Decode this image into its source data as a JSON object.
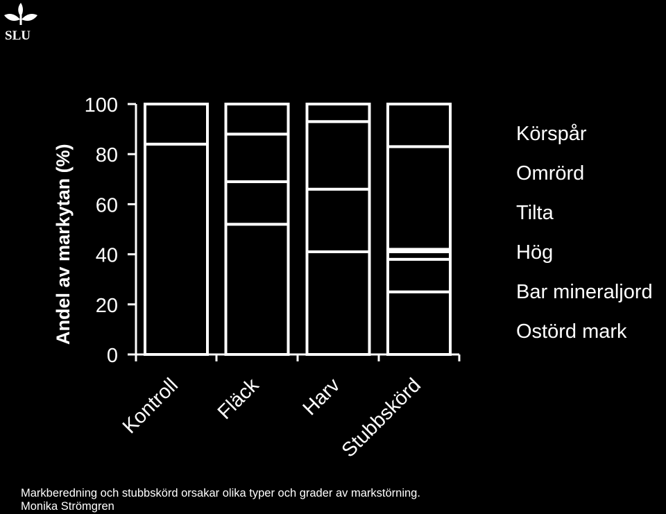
{
  "logo": {
    "text": "SLU"
  },
  "chart_data": {
    "type": "bar",
    "stacked": true,
    "ylabel": "Andel av markytan (%)",
    "ylim": [
      0,
      100
    ],
    "yticks": [
      0,
      20,
      40,
      60,
      80,
      100
    ],
    "categories": [
      "Kontroll",
      "Fläck",
      "Harv",
      "Stubbskörd"
    ],
    "series": [
      {
        "name": "Ostörd mark",
        "values": [
          84,
          52,
          41,
          25
        ]
      },
      {
        "name": "Bar mineraljord",
        "values": [
          0,
          17,
          0,
          13
        ]
      },
      {
        "name": "Hög",
        "values": [
          0,
          0,
          0,
          3
        ]
      },
      {
        "name": "Tilta",
        "values": [
          0,
          0,
          25,
          1
        ]
      },
      {
        "name": "Omrörd",
        "values": [
          0,
          19,
          27,
          41
        ]
      },
      {
        "name": "Körspår",
        "values": [
          16,
          12,
          7,
          17
        ]
      }
    ],
    "legend_order": [
      "Körspår",
      "Omrörd",
      "Tilta",
      "Hög",
      "Bar mineraljord",
      "Ostörd mark"
    ],
    "legend_position": "right",
    "fill_color": "#000000",
    "line_color": "#ffffff",
    "background": "#000000",
    "grid": false
  },
  "caption": {
    "line1": "Markberedning och stubbskörd orsakar olika typer och grader av markstörning.",
    "line2": "Monika Strömgren"
  }
}
